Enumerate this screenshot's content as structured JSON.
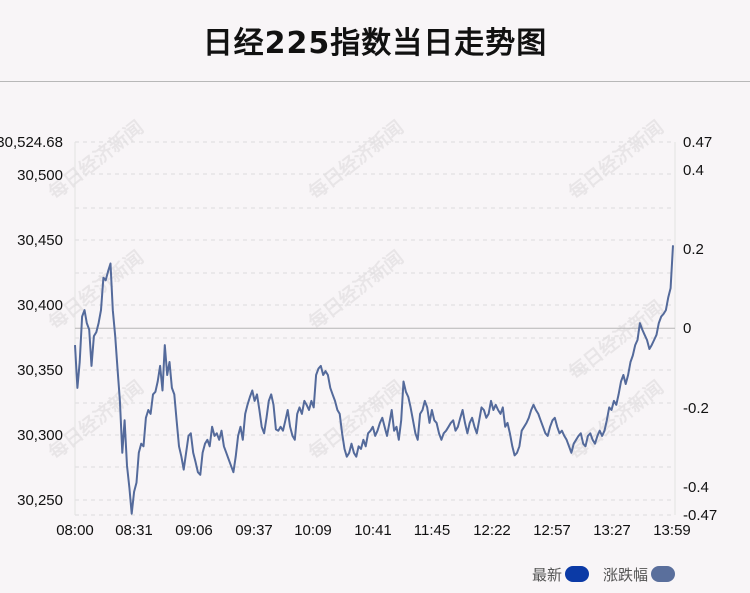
{
  "chart_data": {
    "type": "line",
    "title": "日经225指数当日走势图",
    "x_ticks": [
      "08:00",
      "08:31",
      "09:06",
      "09:37",
      "10:09",
      "10:41",
      "11:45",
      "12:22",
      "12:57",
      "13:27",
      "13:59"
    ],
    "y_left_ticks": [
      "30,524.68",
      "30,500",
      "30,450",
      "30,400",
      "30,350",
      "30,300",
      "30,250"
    ],
    "y_right_ticks": [
      "0.47",
      "0.4",
      "0.2",
      "0",
      "-0.2",
      "-0.4",
      "-0.47"
    ],
    "ylim": [
      30237.0,
      30524.68
    ],
    "reference_value": 30381.0,
    "watermark": "每日经济新闻",
    "legend": [
      {
        "label": "最新",
        "color": "#0b3aa6"
      },
      {
        "label": "涨跌幅",
        "color": "#5a6f9c"
      }
    ],
    "line_color": "#546a9b",
    "series": [
      {
        "values": [
          30368,
          30335,
          30355,
          30390,
          30395,
          30385,
          30380,
          30352,
          30375,
          30378,
          30385,
          30395,
          30420,
          30418,
          30425,
          30431,
          30395,
          30375,
          30350,
          30325,
          30285,
          30310,
          30275,
          30258,
          30238,
          30255,
          30262,
          30285,
          30292,
          30290,
          30312,
          30318,
          30315,
          30330,
          30332,
          30340,
          30352,
          30333,
          30368,
          30345,
          30355,
          30335,
          30330,
          30310,
          30290,
          30282,
          30272,
          30285,
          30298,
          30300,
          30285,
          30278,
          30270,
          30268,
          30285,
          30292,
          30295,
          30290,
          30305,
          30298,
          30300,
          30295,
          30302,
          30290,
          30285,
          30280,
          30275,
          30270,
          30282,
          30298,
          30305,
          30295,
          30315,
          30322,
          30328,
          30333,
          30325,
          30330,
          30318,
          30305,
          30300,
          30312,
          30325,
          30330,
          30322,
          30303,
          30302,
          30305,
          30302,
          30310,
          30318,
          30305,
          30298,
          30295,
          30315,
          30320,
          30315,
          30325,
          30322,
          30318,
          30325,
          30320,
          30345,
          30350,
          30352,
          30345,
          30348,
          30345,
          30335,
          30330,
          30325,
          30318,
          30315,
          30300,
          30288,
          30282,
          30285,
          30292,
          30285,
          30282,
          30290,
          30288,
          30295,
          30290,
          30300,
          30302,
          30305,
          30298,
          30302,
          30308,
          30312,
          30305,
          30298,
          30308,
          30318,
          30302,
          30305,
          30295,
          30310,
          30340,
          30332,
          30328,
          30320,
          30310,
          30300,
          30295,
          30315,
          30318,
          30325,
          30320,
          30308,
          30318,
          30310,
          30308,
          30300,
          30295,
          30300,
          30302,
          30305,
          30308,
          30310,
          30302,
          30305,
          30312,
          30318,
          30308,
          30300,
          30308,
          30312,
          30305,
          30300,
          30310,
          30320,
          30318,
          30312,
          30315,
          30325,
          30318,
          30322,
          30318,
          30315,
          30320,
          30305,
          30308,
          30300,
          30290,
          30283,
          30285,
          30290,
          30302,
          30305,
          30308,
          30312,
          30318,
          30322,
          30318,
          30315,
          30310,
          30305,
          30300,
          30298,
          30305,
          30310,
          30312,
          30305,
          30300,
          30302,
          30298,
          30295,
          30290,
          30285,
          30292,
          30295,
          30298,
          30300,
          30292,
          30290,
          30298,
          30300,
          30295,
          30292,
          30298,
          30302,
          30298,
          30302,
          30310,
          30320,
          30318,
          30325,
          30322,
          30330,
          30340,
          30345,
          30338,
          30345,
          30355,
          30360,
          30368,
          30372,
          30385,
          30380,
          30376,
          30372,
          30365,
          30368,
          30372,
          30376,
          30385,
          30390,
          30392,
          30395,
          30405,
          30412,
          30445
        ]
      }
    ]
  }
}
